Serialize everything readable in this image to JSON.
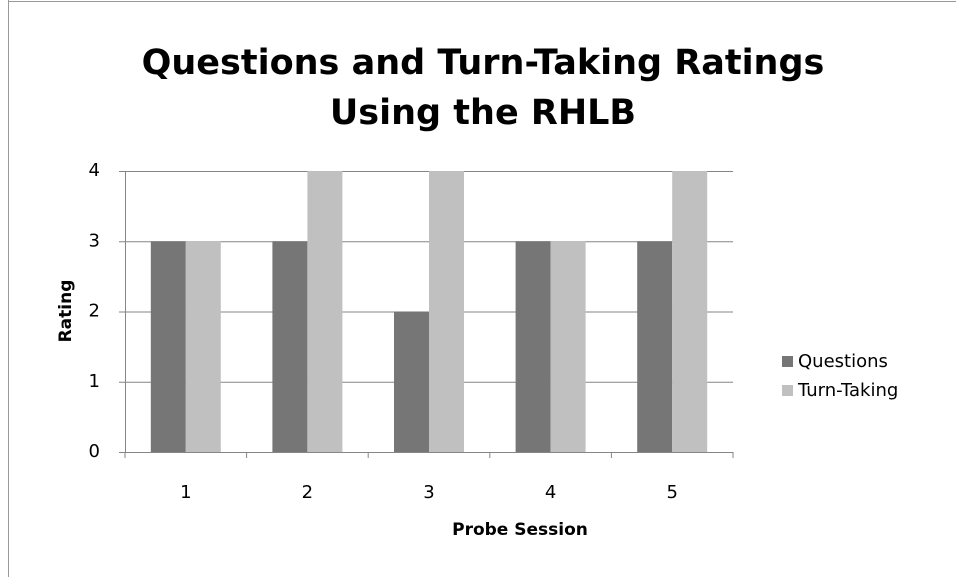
{
  "chart_data": {
    "type": "bar",
    "title": "Questions and Turn-Taking Ratings Using the RHLB",
    "x_label": "Probe Session",
    "y_label": "Rating",
    "categories": [
      "1",
      "2",
      "3",
      "4",
      "5"
    ],
    "series": [
      {
        "name": "Questions",
        "color": "#767676",
        "values": [
          3,
          3,
          2,
          3,
          3
        ]
      },
      {
        "name": "Turn-Taking",
        "color": "#c0c0c0",
        "values": [
          3,
          4,
          4,
          3,
          4
        ]
      }
    ],
    "ylim": [
      0,
      4
    ],
    "yticks": [
      0,
      1,
      2,
      3,
      4
    ],
    "grid": true,
    "legend": "right"
  }
}
